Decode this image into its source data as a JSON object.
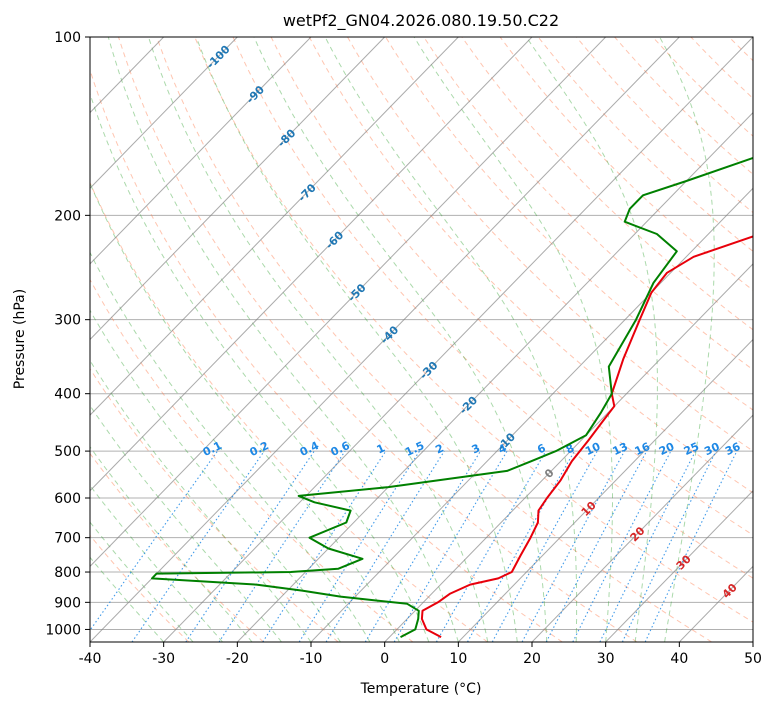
{
  "chart_data": {
    "type": "line",
    "title": "wetPf2_GN04.2026.080.19.50.C22",
    "xlabel": "Temperature (°C)",
    "ylabel": "Pressure (hPa)",
    "xlim": [
      -40,
      50
    ],
    "ylim": [
      1050,
      100
    ],
    "y_scale": "log",
    "grid": true,
    "x_ticks": [
      "-40",
      "-30",
      "-20",
      "-10",
      "0",
      "10",
      "20",
      "30",
      "40",
      "50"
    ],
    "y_ticks": [
      "100",
      "200",
      "300",
      "400",
      "500",
      "600",
      "700",
      "800",
      "900",
      "1000"
    ],
    "isotherm_labels": [
      "-100",
      "-90",
      "-80",
      "-70",
      "-60",
      "-50",
      "-40",
      "-30",
      "-20",
      "-10",
      "0",
      "10",
      "20",
      "30",
      "40"
    ],
    "mixing_ratio_labels": [
      "0.1",
      "0.2",
      "0.4",
      "0.6",
      "1",
      "1.5",
      "2",
      "3",
      "4",
      "6",
      "8",
      "10",
      "13",
      "16",
      "20",
      "25",
      "30",
      "36"
    ],
    "colors": {
      "temperature": "#e8000b",
      "dewpoint": "#008000",
      "isotherm": "#7f7f7f",
      "dry_adiabat": "#ff7f50",
      "moist_adiabat": "#2ca02c",
      "mixing_ratio": "#1e88e5",
      "label_cold": "#1f77b4",
      "label_zero": "#7f7f7f",
      "label_warm": "#d62728"
    },
    "series": [
      {
        "values": [
          {
            "p": 1030,
            "t": 7.0
          },
          {
            "p": 1000,
            "t": 4.0
          },
          {
            "p": 960,
            "t": 2.0
          },
          {
            "p": 930,
            "t": 1.0
          },
          {
            "p": 900,
            "t": 2.0
          },
          {
            "p": 870,
            "t": 2.5
          },
          {
            "p": 840,
            "t": 4.0
          },
          {
            "p": 820,
            "t": 7.0
          },
          {
            "p": 800,
            "t": 8.0
          },
          {
            "p": 750,
            "t": 7.0
          },
          {
            "p": 700,
            "t": 6.0
          },
          {
            "p": 660,
            "t": 5.0
          },
          {
            "p": 630,
            "t": 3.5
          },
          {
            "p": 600,
            "t": 3.0
          },
          {
            "p": 560,
            "t": 2.5
          },
          {
            "p": 520,
            "t": 1.5
          },
          {
            "p": 480,
            "t": 1.0
          },
          {
            "p": 450,
            "t": 0.5
          },
          {
            "p": 420,
            "t": 0.0
          },
          {
            "p": 400,
            "t": -2.0
          },
          {
            "p": 350,
            "t": -5.0
          },
          {
            "p": 300,
            "t": -8.0
          },
          {
            "p": 270,
            "t": -10.0
          },
          {
            "p": 250,
            "t": -10.5
          },
          {
            "p": 235,
            "t": -9.0
          },
          {
            "p": 215,
            "t": -3.0
          },
          {
            "p": 200,
            "t": 3.0
          },
          {
            "p": 175,
            "t": 10.0
          },
          {
            "p": 150,
            "t": 14.0
          },
          {
            "p": 125,
            "t": 22.0
          },
          {
            "p": 110,
            "t": 26.0
          },
          {
            "p": 100,
            "t": 27.0
          }
        ]
      },
      {
        "values": [
          {
            "p": 1030,
            "t": 1.5
          },
          {
            "p": 1000,
            "t": 2.5
          },
          {
            "p": 960,
            "t": 1.5
          },
          {
            "p": 930,
            "t": 0.5
          },
          {
            "p": 905,
            "t": -2.0
          },
          {
            "p": 880,
            "t": -12.0
          },
          {
            "p": 860,
            "t": -18.0
          },
          {
            "p": 840,
            "t": -25.0
          },
          {
            "p": 820,
            "t": -40.0
          },
          {
            "p": 805,
            "t": -40.0
          },
          {
            "p": 800,
            "t": -22.0
          },
          {
            "p": 790,
            "t": -16.0
          },
          {
            "p": 760,
            "t": -14.0
          },
          {
            "p": 730,
            "t": -20.0
          },
          {
            "p": 700,
            "t": -24.0
          },
          {
            "p": 660,
            "t": -21.0
          },
          {
            "p": 630,
            "t": -22.0
          },
          {
            "p": 610,
            "t": -28.0
          },
          {
            "p": 595,
            "t": -31.0
          },
          {
            "p": 575,
            "t": -20.0
          },
          {
            "p": 540,
            "t": -6.0
          },
          {
            "p": 520,
            "t": -4.0
          },
          {
            "p": 500,
            "t": -2.0
          },
          {
            "p": 470,
            "t": 0.0
          },
          {
            "p": 430,
            "t": -1.0
          },
          {
            "p": 400,
            "t": -2.0
          },
          {
            "p": 360,
            "t": -6.0
          },
          {
            "p": 300,
            "t": -8.5
          },
          {
            "p": 260,
            "t": -11.0
          },
          {
            "p": 230,
            "t": -12.0
          },
          {
            "p": 215,
            "t": -17.0
          },
          {
            "p": 205,
            "t": -23.0
          },
          {
            "p": 195,
            "t": -24.0
          },
          {
            "p": 185,
            "t": -24.0
          },
          {
            "p": 175,
            "t": -20.0
          },
          {
            "p": 160,
            "t": -14.0
          },
          {
            "p": 145,
            "t": -12.0
          },
          {
            "p": 130,
            "t": -8.0
          },
          {
            "p": 110,
            "t": -4.0
          },
          {
            "p": 100,
            "t": -2.0
          }
        ]
      }
    ]
  }
}
